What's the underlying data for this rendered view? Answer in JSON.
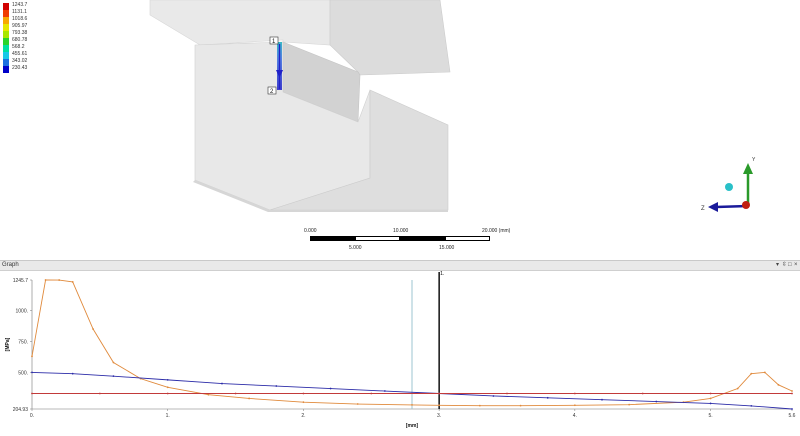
{
  "legend": {
    "items": [
      {
        "value": "1243.7",
        "color": "#d10000"
      },
      {
        "value": "1131.1",
        "color": "#f03d00"
      },
      {
        "value": "1018.6",
        "color": "#f7a800"
      },
      {
        "value": "905.97",
        "color": "#e6e600"
      },
      {
        "value": "793.38",
        "color": "#a8e600"
      },
      {
        "value": "680.78",
        "color": "#2ad42a"
      },
      {
        "value": "568.2",
        "color": "#00e0a0"
      },
      {
        "value": "455.61",
        "color": "#19c8e8"
      },
      {
        "value": "343.02",
        "color": "#1b6fe0"
      },
      {
        "value": "230.43",
        "color": "#0000c8"
      }
    ]
  },
  "probe": {
    "start_label": "1",
    "end_label": "2"
  },
  "triad": {
    "y_label": "Y",
    "z_label": "Z"
  },
  "scale": {
    "top": [
      "0.000",
      "10.000",
      "20.000 (mm)"
    ],
    "bottom": [
      "5.000",
      "15.000"
    ]
  },
  "graph_panel": {
    "title": "Graph",
    "controls": [
      "▾",
      "⇳",
      "□",
      "×"
    ]
  },
  "chart_data": {
    "type": "line",
    "xlabel": "[mm]",
    "ylabel": "[MPa]",
    "xlim": [
      0,
      5.6
    ],
    "ylim": [
      204.93,
      1245.7
    ],
    "x_ticks": [
      {
        "v": 0,
        "label": "0."
      },
      {
        "v": 1,
        "label": "1."
      },
      {
        "v": 2,
        "label": "2."
      },
      {
        "v": 3,
        "label": "3."
      },
      {
        "v": 4,
        "label": "4."
      },
      {
        "v": 5,
        "label": "5."
      },
      {
        "v": 5.6,
        "label": "5.6"
      }
    ],
    "y_ticks": [
      {
        "v": 204.93,
        "label": "204.93"
      },
      {
        "v": 500,
        "label": "500."
      },
      {
        "v": 750,
        "label": "750."
      },
      {
        "v": 1000,
        "label": "1000."
      },
      {
        "v": 1245.7,
        "label": "1245.7"
      }
    ],
    "cursor": {
      "x": 3.0,
      "label": "1."
    },
    "marker_x": 2.8,
    "series": [
      {
        "color": "#e08a3c",
        "x": [
          0.0,
          0.1,
          0.2,
          0.3,
          0.45,
          0.6,
          0.8,
          1.0,
          1.3,
          1.6,
          2.0,
          2.4,
          2.8,
          3.0,
          3.3,
          3.6,
          4.0,
          4.4,
          4.8,
          5.0,
          5.2,
          5.3,
          5.4,
          5.5,
          5.6
        ],
        "y": [
          630,
          1245.7,
          1245,
          1230,
          850,
          580,
          450,
          380,
          320,
          290,
          260,
          245,
          238,
          235,
          232,
          232,
          235,
          240,
          260,
          290,
          370,
          490,
          500,
          400,
          350
        ]
      },
      {
        "color": "#2c2ca8",
        "x": [
          0,
          0.3,
          0.6,
          1.0,
          1.4,
          1.8,
          2.2,
          2.6,
          3.0,
          3.4,
          3.8,
          4.2,
          4.6,
          5.0,
          5.3,
          5.6
        ],
        "y": [
          500,
          490,
          470,
          440,
          410,
          390,
          370,
          350,
          330,
          310,
          295,
          280,
          265,
          250,
          230,
          205
        ]
      },
      {
        "color": "#c23a3a",
        "x": [
          0,
          0.5,
          1.0,
          1.5,
          2.0,
          2.5,
          3.0,
          3.5,
          4.0,
          4.5,
          5.0,
          5.6
        ],
        "y": [
          330,
          330,
          330,
          330,
          330,
          330,
          330,
          330,
          330,
          330,
          330,
          330
        ]
      }
    ]
  }
}
